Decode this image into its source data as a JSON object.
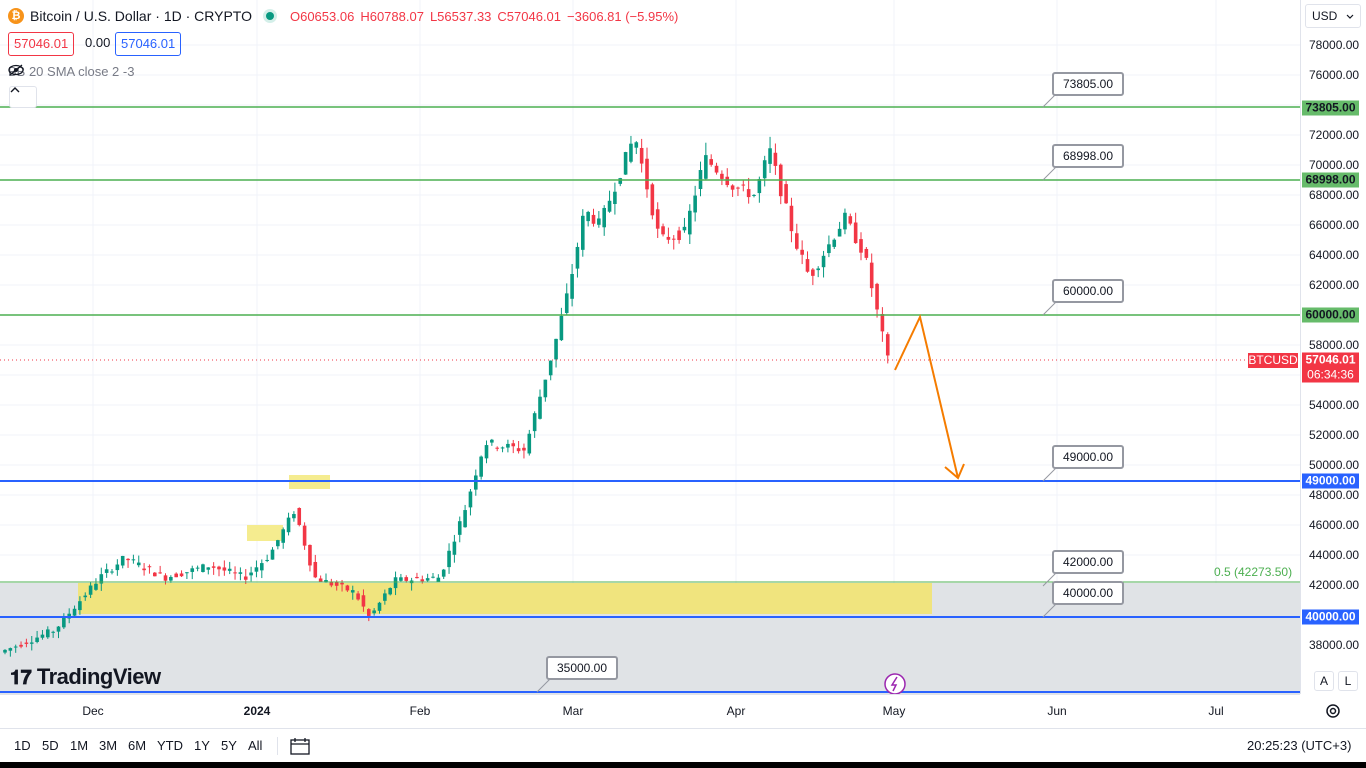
{
  "header": {
    "symbol_title": "Bitcoin / U.S. Dollar · 1D · CRYPTO",
    "open": "O60653.06",
    "high": "H60788.07",
    "low": "L56537.33",
    "close": "C57046.01",
    "change": "−3606.81 (−5.95%)",
    "bid": "57046.01",
    "spread": "0.00",
    "ask": "57046.01",
    "indicator": "BB 20 SMA close 2 -3"
  },
  "currency": "USD",
  "price_axis": {
    "ticks": [
      "78000.00",
      "76000.00",
      "74000.00",
      "72000.00",
      "70000.00",
      "68000.00",
      "66000.00",
      "64000.00",
      "62000.00",
      "60000.00",
      "58000.00",
      "56000.00",
      "54000.00",
      "52000.00",
      "50000.00",
      "48000.00",
      "46000.00",
      "44000.00",
      "42000.00",
      "40000.00",
      "38000.00"
    ],
    "tags": {
      "r73805": "73805.00",
      "r68998": "68998.00",
      "r60000": "60000.00",
      "r49000": "49000.00",
      "r40000": "40000.00",
      "current_price": "57046.01",
      "countdown": "06:34:36",
      "symbol": "BTCUSD"
    }
  },
  "level_callouts": {
    "c73805": "73805.00",
    "c68998": "68998.00",
    "c60000": "60000.00",
    "c49000": "49000.00",
    "c42000": "42000.00",
    "c40000": "40000.00",
    "c35000": "35000.00"
  },
  "fib_label": "0.5 (42273.50)",
  "time_axis": [
    "Dec",
    "2024",
    "Feb",
    "Mar",
    "Apr",
    "May",
    "Jun",
    "Jul"
  ],
  "timeframes": [
    "1D",
    "5D",
    "1M",
    "3M",
    "6M",
    "YTD",
    "1Y",
    "5Y",
    "All"
  ],
  "clock": "20:25:23 (UTC+3)",
  "logo": "TradingView",
  "scale_buttons": [
    "A",
    "L"
  ],
  "colors": {
    "up": "#089981",
    "down": "#f23645",
    "green_line": "#4caf50",
    "blue_line": "#2962ff",
    "arrow": "#f57c00",
    "highlight": "#f2e46b"
  },
  "icons": [
    "bitcoin-coin-icon",
    "market-open-dot-icon",
    "eye-crossed-icon",
    "chevron-up-icon",
    "chevron-down-icon",
    "calendar-range-icon",
    "settings-gear-icon",
    "lightning-event-icon"
  ]
}
